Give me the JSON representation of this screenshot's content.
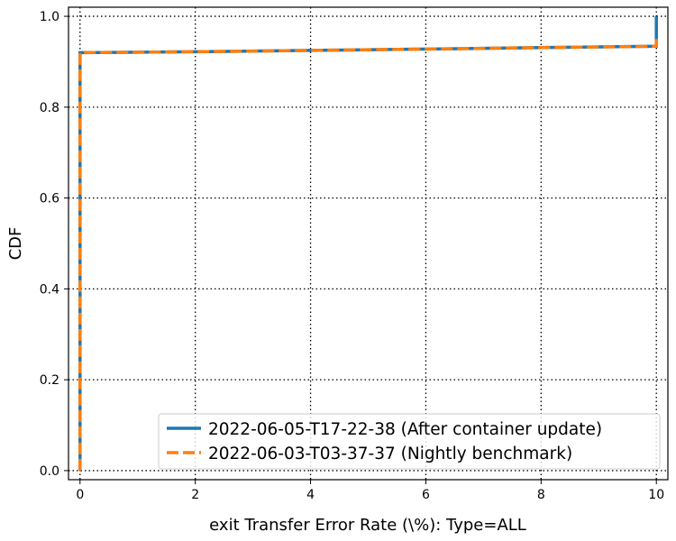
{
  "chart_data": {
    "type": "line",
    "title": "",
    "xlabel": "exit Transfer Error Rate (\\%): Type=ALL",
    "ylabel": "CDF",
    "xlim": [
      -0.2,
      10.2
    ],
    "ylim": [
      -0.02,
      1.02
    ],
    "xticks": [
      0,
      2,
      4,
      6,
      8,
      10
    ],
    "yticks": [
      0.0,
      0.2,
      0.4,
      0.6,
      0.8,
      1.0
    ],
    "xtick_labels": [
      "0",
      "2",
      "4",
      "6",
      "8",
      "10"
    ],
    "ytick_labels": [
      "0.0",
      "0.2",
      "0.4",
      "0.6",
      "0.8",
      "1.0"
    ],
    "grid": true,
    "legend_position": "lower-right",
    "series": [
      {
        "name": "2022-06-05-T17-22-38 (After container update)",
        "color": "#1f77b4",
        "style": "solid",
        "x": [
          0,
          0,
          2,
          4,
          6,
          8,
          10,
          10
        ],
        "y": [
          0.0,
          0.92,
          0.922,
          0.925,
          0.928,
          0.931,
          0.934,
          1.0
        ]
      },
      {
        "name": "2022-06-03-T03-37-37 (Nightly benchmark)",
        "color": "#ff7f0e",
        "style": "dashed",
        "x": [
          0,
          0,
          2,
          4,
          6,
          8,
          10,
          10
        ],
        "y": [
          0.0,
          0.92,
          0.922,
          0.925,
          0.928,
          0.931,
          0.934,
          0.95
        ]
      }
    ]
  }
}
